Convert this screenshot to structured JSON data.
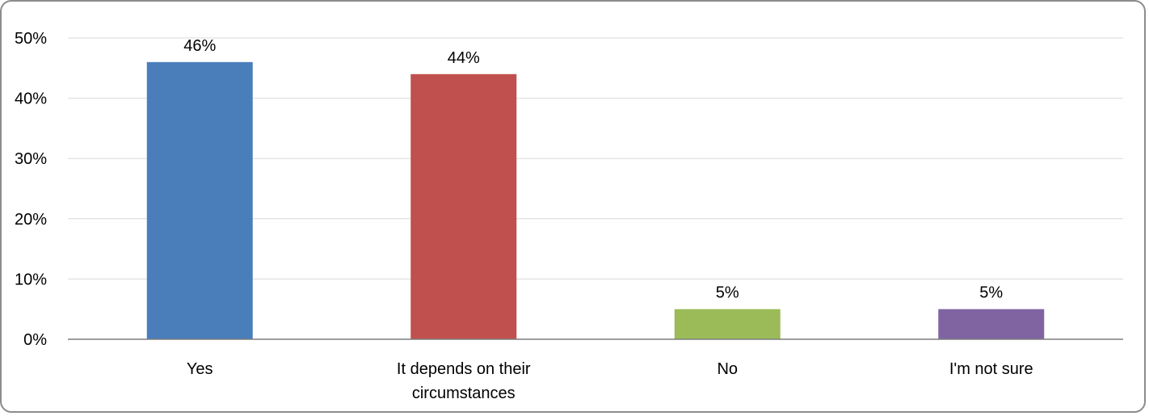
{
  "chart_data": {
    "type": "bar",
    "title": "",
    "xlabel": "",
    "ylabel": "",
    "categories": [
      [
        "Yes"
      ],
      [
        "It depends on their",
        "circumstances"
      ],
      [
        "No"
      ],
      [
        "I'm not sure"
      ]
    ],
    "values": [
      46,
      44,
      5,
      5
    ],
    "data_labels": [
      "46%",
      "44%",
      "5%",
      "5%"
    ],
    "colors": [
      "#4a7ebb",
      "#c0504d",
      "#9bbb59",
      "#8064a2"
    ],
    "ylim": [
      0,
      50
    ],
    "yticks": [
      0,
      10,
      20,
      30,
      40,
      50
    ],
    "ytick_labels": [
      "0%",
      "10%",
      "20%",
      "30%",
      "40%",
      "50%"
    ],
    "grid": true,
    "legend": false
  }
}
